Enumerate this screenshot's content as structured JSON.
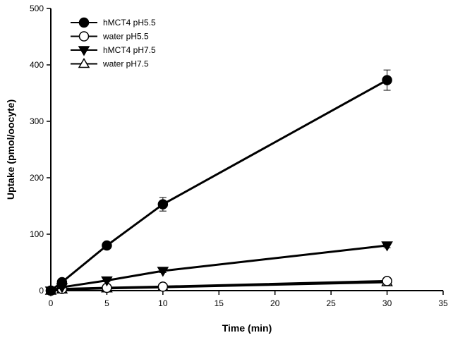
{
  "chart_data": {
    "type": "line",
    "title": "",
    "xlabel": "Time (min)",
    "ylabel": "Uptake (pmol/oocyte)",
    "xlim": [
      0,
      35
    ],
    "ylim": [
      0,
      500
    ],
    "xticks": [
      0,
      5,
      10,
      15,
      20,
      25,
      30,
      35
    ],
    "yticks": [
      0,
      100,
      200,
      300,
      400,
      500
    ],
    "grid": false,
    "legend_position": "top-left",
    "series": [
      {
        "name": "hMCT4 pH5.5",
        "marker": "filled-circle",
        "x": [
          0,
          1,
          5,
          10,
          30
        ],
        "y": [
          0,
          15,
          80,
          153,
          373
        ],
        "err": [
          0,
          3,
          5,
          12,
          18
        ]
      },
      {
        "name": "water pH5.5",
        "marker": "open-circle",
        "x": [
          0,
          1,
          5,
          10,
          30
        ],
        "y": [
          0,
          3,
          5,
          7,
          17
        ],
        "err": [
          0,
          1,
          1,
          1,
          3
        ]
      },
      {
        "name": "hMCT4 pH7.5",
        "marker": "filled-triangle-down",
        "x": [
          0,
          1,
          5,
          10,
          30
        ],
        "y": [
          0,
          6,
          18,
          35,
          80
        ],
        "err": [
          0,
          1,
          2,
          3,
          4
        ]
      },
      {
        "name": "water pH7.5",
        "marker": "open-triangle-up",
        "x": [
          0,
          1,
          5,
          10,
          30
        ],
        "y": [
          0,
          2,
          4,
          6,
          15
        ],
        "err": [
          0,
          1,
          1,
          1,
          2
        ]
      }
    ]
  }
}
